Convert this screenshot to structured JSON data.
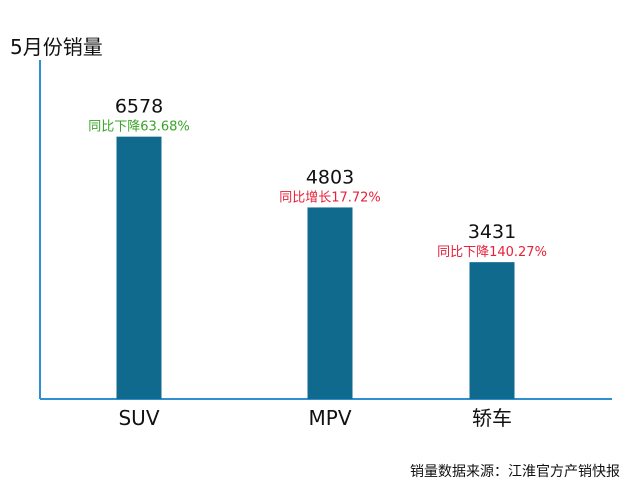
{
  "chart_data": {
    "type": "bar",
    "title": "5月份销量",
    "categories": [
      "SUV",
      "MPV",
      "轿车"
    ],
    "values": [
      6578,
      4803,
      3431
    ],
    "value_labels": [
      "6578",
      "4803",
      "3431"
    ],
    "change_labels": [
      "同比下降63.68%",
      "同比增长17.72%",
      "同比下降140.27%"
    ],
    "change_colors": [
      "#3aa329",
      "#e8203a",
      "#e8203a"
    ],
    "ylim": [
      0,
      8500
    ],
    "grid": false,
    "bar_color": "#0f6a8e",
    "axis_color": "#2f8fd5",
    "source": "销量数据来源：江淮官方产销快报"
  }
}
